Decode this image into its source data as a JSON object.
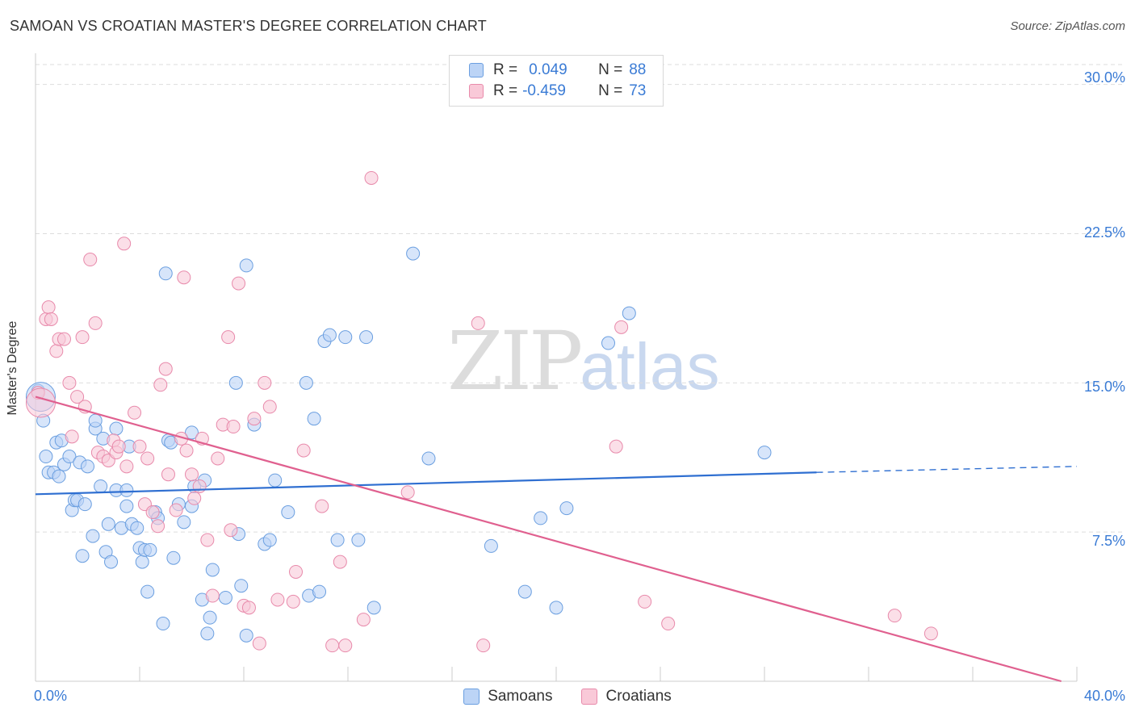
{
  "title": "SAMOAN VS CROATIAN MASTER'S DEGREE CORRELATION CHART",
  "source": "Source: ZipAtlas.com",
  "watermark": {
    "zip": "ZIP",
    "atlas": "atlas"
  },
  "legend_top": {
    "rows": [
      {
        "r_label": "R =",
        "r_value": "0.049",
        "n_label": "N =",
        "n_value": "88"
      },
      {
        "r_label": "R =",
        "r_value": "-0.459",
        "n_label": "N =",
        "n_value": "73"
      }
    ]
  },
  "legend_bottom": {
    "items": [
      "Samoans",
      "Croatians"
    ]
  },
  "colors": {
    "samoan_fill": "#bcd4f6",
    "samoan_stroke": "#6b9fe0",
    "samoan_line": "#2f6fd1",
    "croatian_fill": "#f9c9d8",
    "croatian_stroke": "#e88aab",
    "croatian_line": "#e0608f",
    "axis_text": "#3a7bd5",
    "grid": "#dddddd"
  },
  "chart_data": {
    "type": "scatter",
    "title": "SAMOAN VS CROATIAN MASTER'S DEGREE CORRELATION CHART",
    "xlabel": "",
    "ylabel": "Master's Degree",
    "xlim": [
      0,
      40
    ],
    "ylim": [
      0,
      31
    ],
    "x_tick_labels": [
      "0.0%",
      "40.0%"
    ],
    "y_ticks": [
      7.5,
      15.0,
      22.5,
      30.0
    ],
    "y_tick_labels": [
      "7.5%",
      "15.0%",
      "22.5%",
      "30.0%"
    ],
    "grid": "horizontal dashed",
    "legend_position": "top-center",
    "series": [
      {
        "name": "Samoans",
        "R": 0.049,
        "N": 88,
        "trend": {
          "x": [
            0,
            30.0
          ],
          "y": [
            9.4,
            10.5
          ],
          "dashed_to": [
            40.0,
            10.8
          ]
        },
        "points": [
          [
            0.1,
            14.6
          ],
          [
            0.3,
            13.1
          ],
          [
            0.4,
            11.3
          ],
          [
            0.5,
            10.5
          ],
          [
            0.7,
            10.5
          ],
          [
            0.8,
            12.0
          ],
          [
            0.9,
            10.3
          ],
          [
            1.0,
            12.1
          ],
          [
            1.1,
            10.9
          ],
          [
            1.3,
            11.3
          ],
          [
            1.4,
            8.6
          ],
          [
            1.5,
            9.1
          ],
          [
            1.6,
            9.1
          ],
          [
            1.7,
            11.0
          ],
          [
            1.8,
            6.3
          ],
          [
            1.9,
            8.9
          ],
          [
            2.0,
            10.8
          ],
          [
            2.2,
            7.3
          ],
          [
            2.3,
            12.7
          ],
          [
            2.3,
            13.1
          ],
          [
            2.5,
            9.8
          ],
          [
            2.6,
            12.2
          ],
          [
            2.7,
            6.5
          ],
          [
            2.8,
            7.9
          ],
          [
            2.9,
            6.0
          ],
          [
            3.1,
            12.7
          ],
          [
            3.1,
            9.6
          ],
          [
            3.3,
            7.7
          ],
          [
            3.5,
            8.8
          ],
          [
            3.5,
            9.6
          ],
          [
            3.6,
            11.8
          ],
          [
            3.7,
            7.9
          ],
          [
            3.9,
            7.7
          ],
          [
            4.0,
            6.7
          ],
          [
            4.1,
            6.0
          ],
          [
            4.2,
            6.6
          ],
          [
            4.3,
            4.5
          ],
          [
            4.4,
            6.6
          ],
          [
            4.6,
            8.5
          ],
          [
            4.7,
            8.2
          ],
          [
            4.9,
            2.9
          ],
          [
            5.0,
            20.5
          ],
          [
            5.1,
            12.1
          ],
          [
            5.2,
            12.0
          ],
          [
            5.3,
            6.2
          ],
          [
            5.5,
            8.9
          ],
          [
            5.7,
            8.0
          ],
          [
            6.0,
            8.8
          ],
          [
            6.0,
            12.5
          ],
          [
            6.1,
            9.8
          ],
          [
            6.4,
            4.1
          ],
          [
            6.5,
            10.1
          ],
          [
            6.6,
            2.4
          ],
          [
            6.7,
            3.2
          ],
          [
            6.8,
            5.6
          ],
          [
            7.3,
            4.2
          ],
          [
            7.7,
            15.0
          ],
          [
            7.8,
            7.4
          ],
          [
            7.9,
            4.8
          ],
          [
            8.1,
            2.3
          ],
          [
            8.1,
            20.9
          ],
          [
            8.4,
            12.9
          ],
          [
            8.8,
            6.9
          ],
          [
            9.0,
            7.1
          ],
          [
            9.2,
            10.1
          ],
          [
            9.7,
            8.5
          ],
          [
            10.4,
            15.0
          ],
          [
            10.5,
            4.3
          ],
          [
            10.7,
            13.2
          ],
          [
            10.9,
            4.5
          ],
          [
            11.1,
            17.1
          ],
          [
            11.3,
            17.4
          ],
          [
            11.6,
            7.1
          ],
          [
            11.9,
            17.3
          ],
          [
            12.4,
            7.1
          ],
          [
            12.7,
            17.3
          ],
          [
            13.0,
            3.7
          ],
          [
            14.5,
            21.5
          ],
          [
            15.1,
            11.2
          ],
          [
            17.5,
            6.8
          ],
          [
            18.8,
            4.5
          ],
          [
            19.4,
            8.2
          ],
          [
            20.0,
            3.7
          ],
          [
            20.4,
            8.7
          ],
          [
            22.0,
            17.0
          ],
          [
            22.8,
            18.5
          ],
          [
            28.0,
            11.5
          ],
          [
            0.2,
            14.3
          ]
        ]
      },
      {
        "name": "Croatians",
        "R": -0.459,
        "N": 73,
        "trend": {
          "x": [
            0,
            39.4
          ],
          "y": [
            14.3,
            0.0
          ]
        },
        "points": [
          [
            0.1,
            14.5
          ],
          [
            0.4,
            18.2
          ],
          [
            0.5,
            18.8
          ],
          [
            0.6,
            18.2
          ],
          [
            0.8,
            16.6
          ],
          [
            0.9,
            17.2
          ],
          [
            1.1,
            17.2
          ],
          [
            1.3,
            15.0
          ],
          [
            1.4,
            12.3
          ],
          [
            1.6,
            14.3
          ],
          [
            1.8,
            17.3
          ],
          [
            1.9,
            13.8
          ],
          [
            2.1,
            21.2
          ],
          [
            2.3,
            18.0
          ],
          [
            2.4,
            11.5
          ],
          [
            2.6,
            11.3
          ],
          [
            2.8,
            11.1
          ],
          [
            3.0,
            12.1
          ],
          [
            3.1,
            11.5
          ],
          [
            3.2,
            11.8
          ],
          [
            3.4,
            22.0
          ],
          [
            3.5,
            10.8
          ],
          [
            3.8,
            13.5
          ],
          [
            4.0,
            11.8
          ],
          [
            4.2,
            8.9
          ],
          [
            4.3,
            11.2
          ],
          [
            4.5,
            8.5
          ],
          [
            4.7,
            7.8
          ],
          [
            4.8,
            14.9
          ],
          [
            5.0,
            15.7
          ],
          [
            5.1,
            10.4
          ],
          [
            5.4,
            8.6
          ],
          [
            5.6,
            12.2
          ],
          [
            5.7,
            20.3
          ],
          [
            5.8,
            11.6
          ],
          [
            6.0,
            10.4
          ],
          [
            6.1,
            9.2
          ],
          [
            6.3,
            9.8
          ],
          [
            6.4,
            12.2
          ],
          [
            6.6,
            7.1
          ],
          [
            6.8,
            4.3
          ],
          [
            7.0,
            11.2
          ],
          [
            7.2,
            12.9
          ],
          [
            7.4,
            17.3
          ],
          [
            7.5,
            7.6
          ],
          [
            7.6,
            12.8
          ],
          [
            7.8,
            20.0
          ],
          [
            8.0,
            3.8
          ],
          [
            8.2,
            3.7
          ],
          [
            8.4,
            13.2
          ],
          [
            8.6,
            1.9
          ],
          [
            8.8,
            15.0
          ],
          [
            9.0,
            13.8
          ],
          [
            9.3,
            4.1
          ],
          [
            9.9,
            4.0
          ],
          [
            10.0,
            5.5
          ],
          [
            10.3,
            11.6
          ],
          [
            11.0,
            8.8
          ],
          [
            11.4,
            1.8
          ],
          [
            11.7,
            6.0
          ],
          [
            11.9,
            1.8
          ],
          [
            12.6,
            3.1
          ],
          [
            12.9,
            25.3
          ],
          [
            14.3,
            9.5
          ],
          [
            17.0,
            18.0
          ],
          [
            17.2,
            1.8
          ],
          [
            22.3,
            11.8
          ],
          [
            22.5,
            17.8
          ],
          [
            23.4,
            4.0
          ],
          [
            24.3,
            2.9
          ],
          [
            33.0,
            3.3
          ],
          [
            34.4,
            2.4
          ],
          [
            0.2,
            14.0
          ]
        ]
      }
    ]
  }
}
